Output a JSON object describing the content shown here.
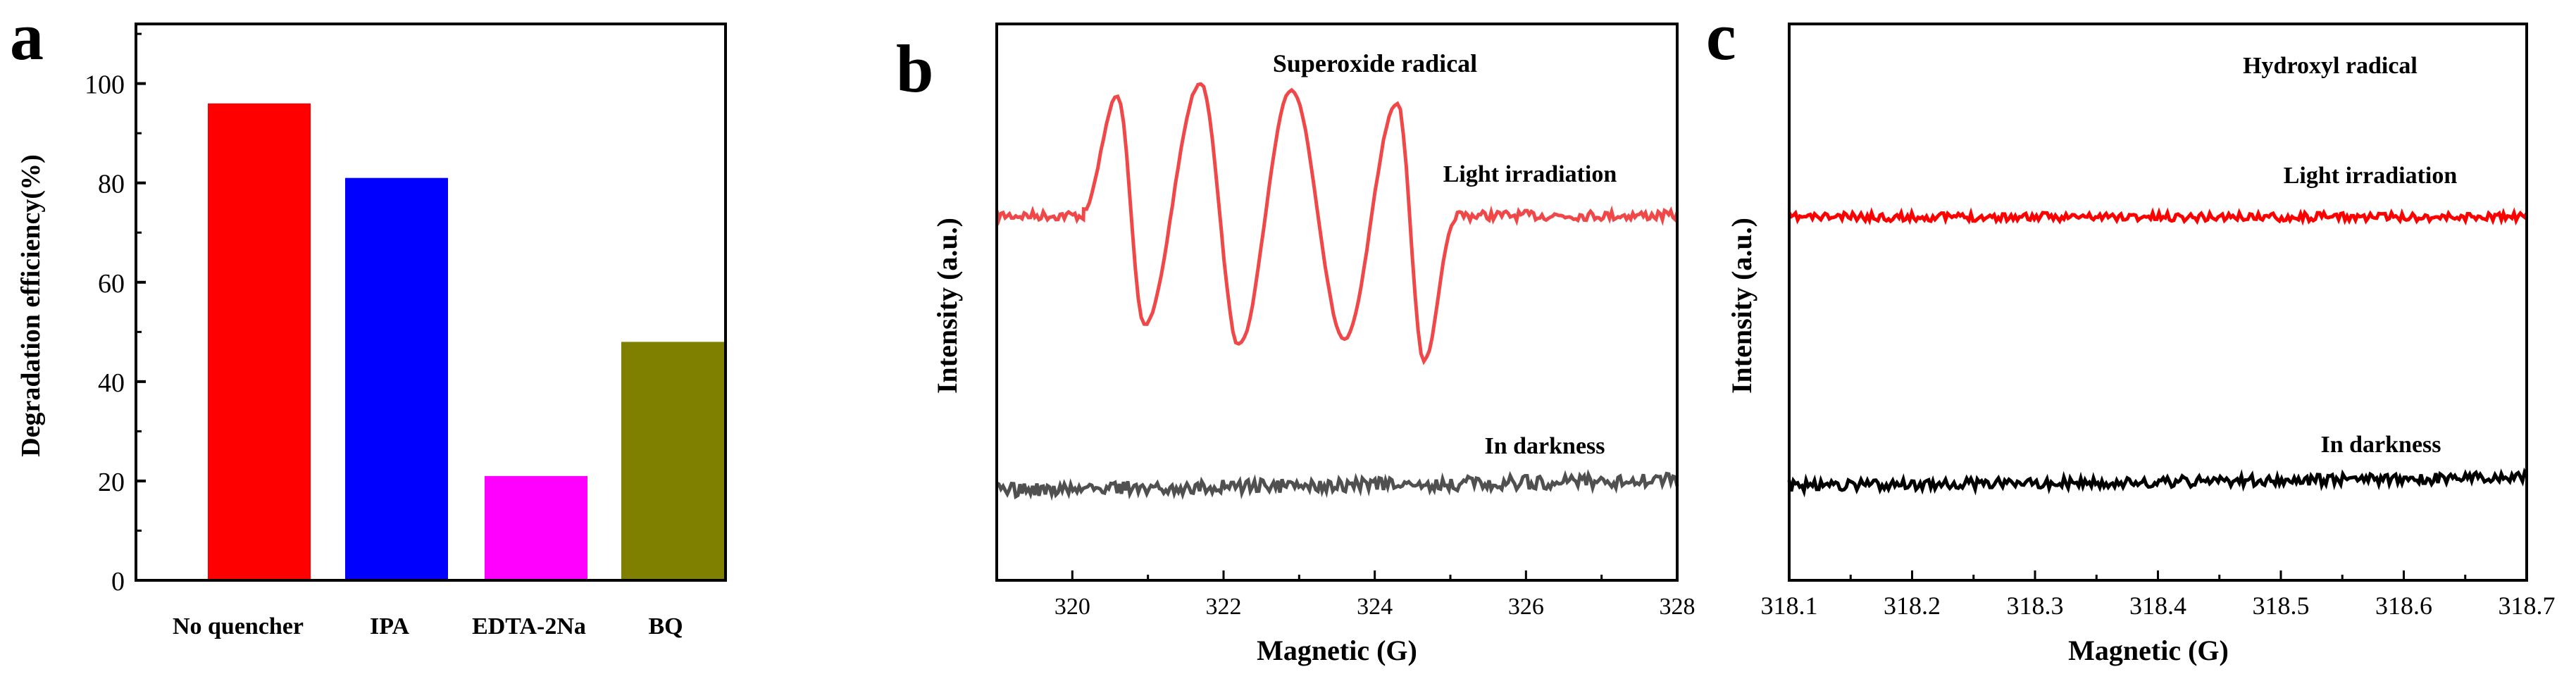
{
  "chart_data": [
    {
      "panel_label": "a",
      "type": "bar",
      "ylabel": "Degradation efficiency(%)",
      "xlabel": "",
      "ylim": [
        0,
        112
      ],
      "yticks": [
        "0",
        "20",
        "40",
        "60",
        "80",
        "100"
      ],
      "categories": [
        "No quencher",
        "IPA",
        "EDTA-2Na",
        "BQ"
      ],
      "values": [
        96,
        81,
        21,
        48
      ],
      "colors": [
        "#ff0000",
        "#0000ff",
        "#ff00ff",
        "#808000"
      ]
    },
    {
      "panel_label": "b",
      "type": "line",
      "title": "Superoxide radical",
      "xlabel": "Magnetic (G)",
      "ylabel": "Intensity (a.u.)",
      "xlim": [
        319,
        328
      ],
      "xticks": [
        "320",
        "322",
        "324",
        "326",
        "328"
      ],
      "peaks": [
        320.6,
        321.7,
        322.9,
        324.3
      ],
      "troughs": [
        320.95,
        322.2,
        323.6,
        324.65
      ],
      "series": [
        {
          "name": "Light irradiation",
          "color": "#f04848"
        },
        {
          "name": "In darkness",
          "color": "#505050"
        }
      ]
    },
    {
      "panel_label": "c",
      "type": "line",
      "title": "Hydroxyl radical",
      "xlabel": "Magnetic (G)",
      "ylabel": "Intensity (a.u.)",
      "xlim": [
        318.1,
        318.7
      ],
      "xticks": [
        "318.1",
        "318.2",
        "318.3",
        "318.4",
        "318.5",
        "318.6",
        "318.7"
      ],
      "series": [
        {
          "name": "Light irradiation",
          "color": "#ff0000"
        },
        {
          "name": "In darkness",
          "color": "#000000"
        }
      ]
    }
  ]
}
